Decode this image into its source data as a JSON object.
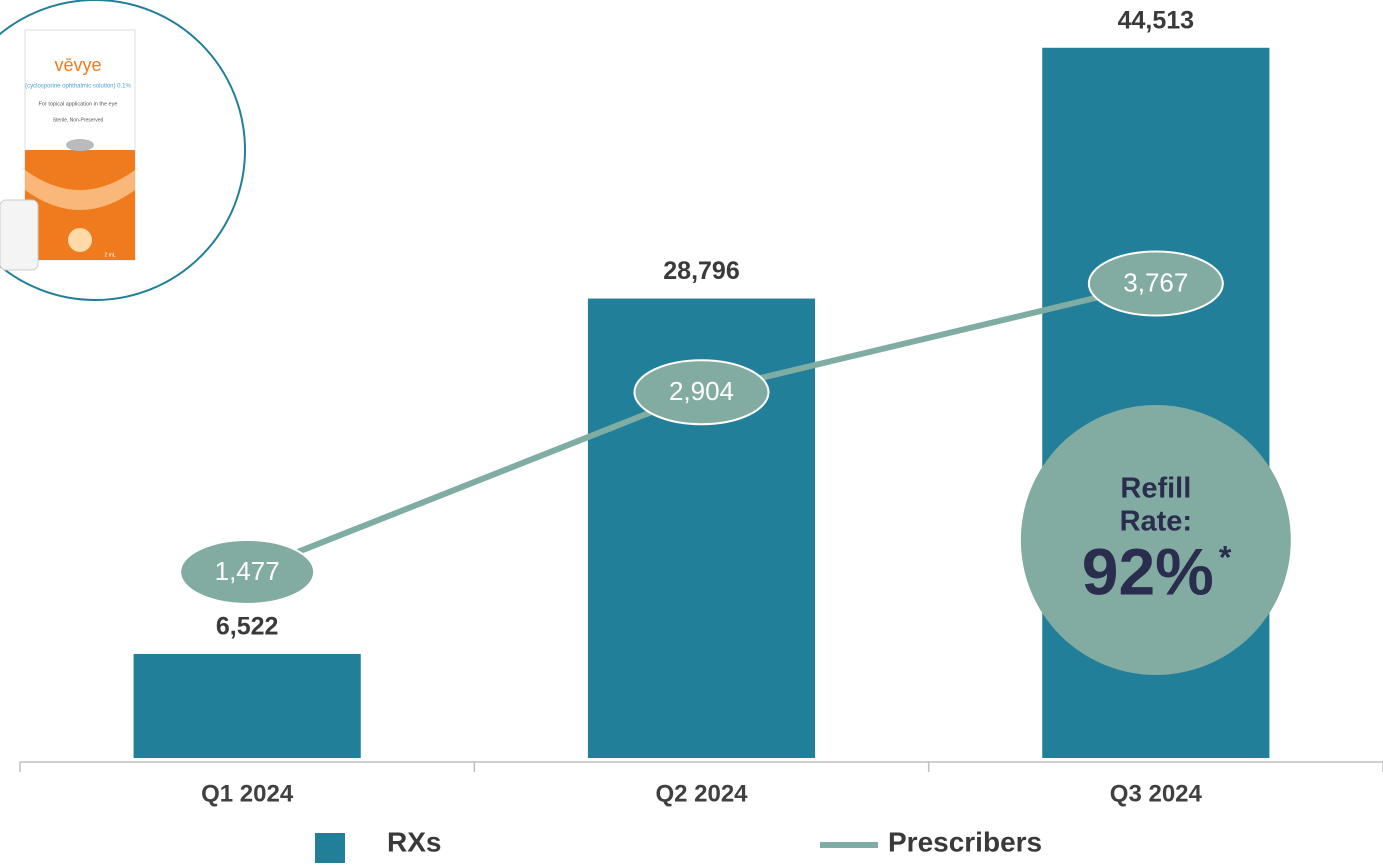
{
  "chart_data": {
    "type": "combo",
    "categories": [
      "Q1 2024",
      "Q2 2024",
      "Q3 2024"
    ],
    "series": [
      {
        "name": "RXs",
        "type": "bar",
        "color": "#217f9a",
        "values": [
          6522,
          28796,
          44513
        ],
        "value_labels": [
          "6,522",
          "28,796",
          "44,513"
        ]
      },
      {
        "name": "Prescribers",
        "type": "line",
        "axis": "y2",
        "color": "#7fada3",
        "values": [
          1477,
          2904,
          3767
        ],
        "value_labels": [
          "1,477",
          "2,904",
          "3,767"
        ]
      }
    ],
    "ylim": [
      0,
      45000
    ],
    "y2lim": [
      0,
      5700
    ],
    "grid": false,
    "legend": "bottom",
    "annotations": [
      "Refill",
      "Rate:",
      "92%",
      "*"
    ]
  },
  "product_label": [
    "vēvye",
    "(cyclosporine ophthalmic solution) 0.1%",
    "For topical application in the eye",
    "Sterile, Non-Preserved",
    "2 mL"
  ]
}
